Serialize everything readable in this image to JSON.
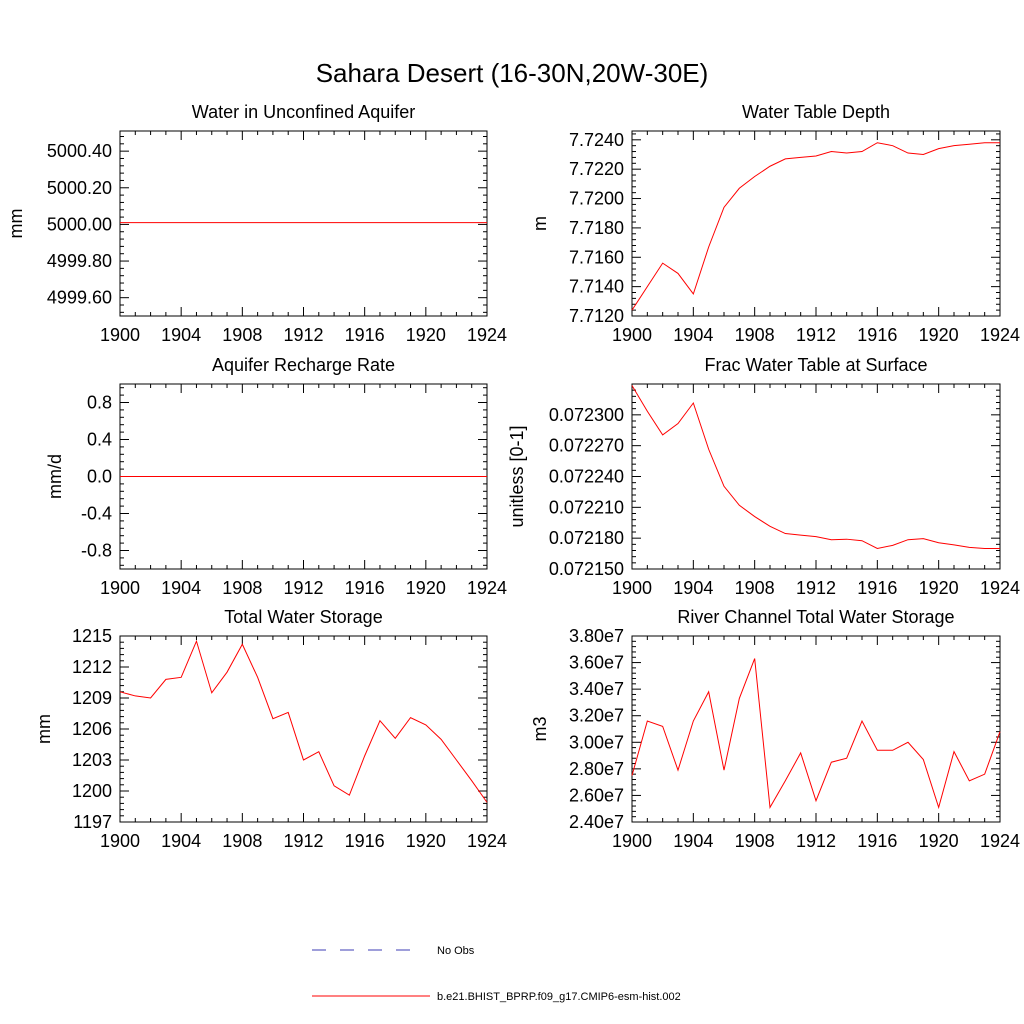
{
  "title": "Sahara Desert (16-30N,20W-30E)",
  "colors": {
    "model": "#ff0000",
    "obs": "#3c3cb4",
    "axis": "#000000"
  },
  "legend": {
    "items": [
      {
        "label": "No Obs",
        "style": "dashed",
        "color": "#3c3cb4"
      },
      {
        "label": "b.e21.BHIST_BPRP.f09_g17.CMIP6-esm-hist.002",
        "style": "solid",
        "color": "#ff0000"
      }
    ]
  },
  "chart_data": [
    {
      "type": "line",
      "title": "Water in Unconfined Aquifer",
      "ylabel": "mm",
      "xlim": [
        1900,
        1924
      ],
      "ylim": [
        4999.5,
        5000.51
      ],
      "xticks": [
        1900,
        1904,
        1908,
        1912,
        1916,
        1920,
        1924
      ],
      "yticks": [
        4999.6,
        4999.8,
        5000.0,
        5000.2,
        5000.4
      ],
      "ytick_labels": [
        "4999.60",
        "4999.80",
        "5000.00",
        "5000.20",
        "5000.40"
      ],
      "series": [
        {
          "x": [
            1900,
            1924
          ],
          "values": [
            5000.01,
            5000.01
          ]
        }
      ]
    },
    {
      "type": "line",
      "title": "Water Table Depth",
      "ylabel": "m",
      "xlim": [
        1900,
        1924
      ],
      "ylim": [
        7.712,
        7.7246
      ],
      "xticks": [
        1900,
        1904,
        1908,
        1912,
        1916,
        1920,
        1924
      ],
      "yticks": [
        7.712,
        7.714,
        7.716,
        7.718,
        7.72,
        7.722,
        7.724
      ],
      "ytick_labels": [
        "7.7120",
        "7.7140",
        "7.7160",
        "7.7180",
        "7.7200",
        "7.7220",
        "7.7240"
      ],
      "series": [
        {
          "x": [
            1900,
            1901,
            1902,
            1903,
            1904,
            1905,
            1906,
            1907,
            1908,
            1909,
            1910,
            1911,
            1912,
            1913,
            1914,
            1915,
            1916,
            1917,
            1918,
            1919,
            1920,
            1921,
            1922,
            1923,
            1924
          ],
          "values": [
            7.7124,
            7.714,
            7.7156,
            7.7149,
            7.7135,
            7.7167,
            7.7194,
            7.7207,
            7.7215,
            7.7222,
            7.7227,
            7.7228,
            7.7229,
            7.7232,
            7.7231,
            7.7232,
            7.7238,
            7.7236,
            7.7231,
            7.723,
            7.7234,
            7.7236,
            7.7237,
            7.7238,
            7.7238
          ]
        }
      ]
    },
    {
      "type": "line",
      "title": "Aquifer Recharge Rate",
      "ylabel": "mm/d",
      "xlim": [
        1900,
        1924
      ],
      "ylim": [
        -1.0,
        1.0
      ],
      "xticks": [
        1900,
        1904,
        1908,
        1912,
        1916,
        1920,
        1924
      ],
      "yticks": [
        -0.8,
        -0.4,
        0.0,
        0.4,
        0.8
      ],
      "ytick_labels": [
        "-0.8",
        "-0.4",
        "0.0",
        "0.4",
        "0.8"
      ],
      "series": [
        {
          "x": [
            1900,
            1924
          ],
          "values": [
            0.0,
            0.0
          ]
        }
      ]
    },
    {
      "type": "line",
      "title": "Frac Water Table at Surface",
      "ylabel": "unitless [0-1]",
      "xlim": [
        1900,
        1924
      ],
      "ylim": [
        0.07215,
        0.07233
      ],
      "xticks": [
        1900,
        1904,
        1908,
        1912,
        1916,
        1920,
        1924
      ],
      "yticks": [
        0.07215,
        0.07218,
        0.07221,
        0.07224,
        0.07227,
        0.0723
      ],
      "ytick_labels": [
        "0.072150",
        "0.072180",
        "0.072210",
        "0.072240",
        "0.072270",
        "0.072300"
      ],
      "series": [
        {
          "x": [
            1900,
            1901,
            1902,
            1903,
            1904,
            1905,
            1906,
            1907,
            1908,
            1909,
            1910,
            1911,
            1912,
            1913,
            1914,
            1915,
            1916,
            1917,
            1918,
            1919,
            1920,
            1921,
            1922,
            1923,
            1924
          ],
          "values": [
            0.0723285,
            0.0723035,
            0.0722805,
            0.0722915,
            0.0723115,
            0.0722665,
            0.0722305,
            0.072212,
            0.072201,
            0.0721915,
            0.0721845,
            0.072183,
            0.0721815,
            0.0721785,
            0.072179,
            0.0721775,
            0.07217,
            0.072173,
            0.0721785,
            0.0721795,
            0.0721755,
            0.0721735,
            0.072171,
            0.07217,
            0.07217
          ]
        }
      ]
    },
    {
      "type": "line",
      "title": "Total Water Storage",
      "ylabel": "mm",
      "xlim": [
        1900,
        1924
      ],
      "ylim": [
        1197,
        1215
      ],
      "xticks": [
        1900,
        1904,
        1908,
        1912,
        1916,
        1920,
        1924
      ],
      "yticks": [
        1197,
        1200,
        1203,
        1206,
        1209,
        1212,
        1215
      ],
      "ytick_labels": [
        "1197",
        "1200",
        "1203",
        "1206",
        "1209",
        "1212",
        "1215"
      ],
      "series": [
        {
          "x": [
            1900,
            1901,
            1902,
            1903,
            1904,
            1905,
            1906,
            1907,
            1908,
            1909,
            1910,
            1911,
            1912,
            1913,
            1914,
            1915,
            1916,
            1917,
            1918,
            1919,
            1920,
            1921,
            1922,
            1923,
            1924
          ],
          "values": [
            1209.6,
            1209.2,
            1209.0,
            1210.8,
            1211.0,
            1214.5,
            1209.5,
            1211.5,
            1214.2,
            1211.0,
            1207.0,
            1207.6,
            1203.0,
            1203.8,
            1200.5,
            1199.6,
            1203.4,
            1206.8,
            1205.1,
            1207.1,
            1206.4,
            1205.0,
            1203.0,
            1201.0,
            1198.9
          ]
        }
      ]
    },
    {
      "type": "line",
      "title": "River Channel Total Water Storage",
      "ylabel": "m3",
      "xlim": [
        1900,
        1924
      ],
      "ylim": [
        24000000,
        38000000
      ],
      "xticks": [
        1900,
        1904,
        1908,
        1912,
        1916,
        1920,
        1924
      ],
      "yticks": [
        24000000,
        26000000,
        28000000,
        30000000,
        32000000,
        34000000,
        36000000,
        38000000
      ],
      "ytick_labels": [
        "2.40e7",
        "2.60e7",
        "2.80e7",
        "3.00e7",
        "3.20e7",
        "3.40e7",
        "3.60e7",
        "3.80e7"
      ],
      "series": [
        {
          "x": [
            1900,
            1901,
            1902,
            1903,
            1904,
            1905,
            1906,
            1907,
            1908,
            1909,
            1910,
            1911,
            1912,
            1913,
            1914,
            1915,
            1916,
            1917,
            1918,
            1919,
            1920,
            1921,
            1922,
            1923,
            1924
          ],
          "values": [
            27500000,
            31600000,
            31200000,
            27900000,
            31600000,
            33800000,
            27900000,
            33300000,
            36300000,
            25100000,
            27100000,
            29200000,
            25600000,
            28500000,
            28800000,
            31600000,
            29400000,
            29400000,
            30000000,
            28700000,
            25100000,
            29300000,
            27100000,
            27600000,
            30800000
          ]
        }
      ]
    }
  ]
}
